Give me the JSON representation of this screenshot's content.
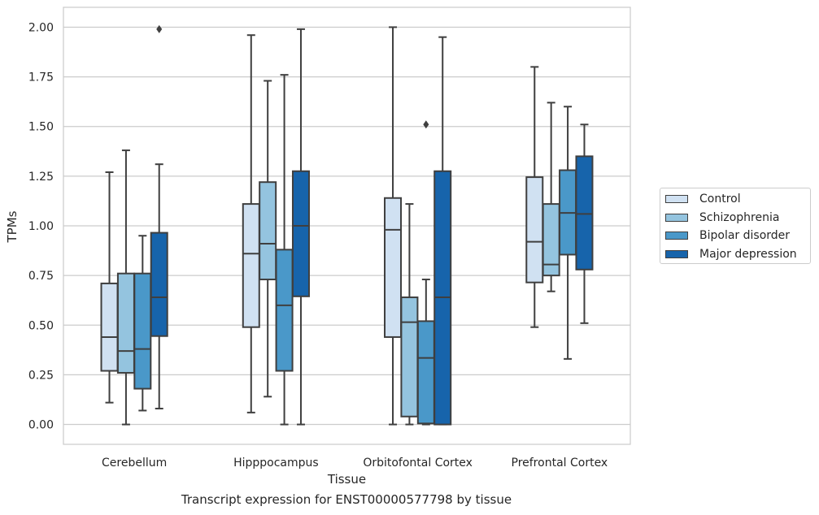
{
  "chart_data": {
    "type": "boxplot",
    "xlabel": "Tissue",
    "ylabel": "TPMs",
    "ylim": [
      -0.1,
      2.1
    ],
    "yticks": [
      "0.00",
      "0.25",
      "0.50",
      "0.75",
      "1.00",
      "1.25",
      "1.50",
      "1.75",
      "2.00"
    ],
    "grid": "horizontal",
    "legend_position": "right",
    "categories": [
      "Cerebellum",
      "Hipppocampus",
      "Orbitofontal Cortex",
      "Prefrontal Cortex"
    ],
    "series": [
      {
        "name": "Control",
        "color": "#d0e1f2",
        "boxes": [
          {
            "whislo": 0.11,
            "q1": 0.27,
            "med": 0.44,
            "q3": 0.71,
            "whishi": 1.27,
            "fliers": []
          },
          {
            "whislo": 0.06,
            "q1": 0.49,
            "med": 0.86,
            "q3": 1.11,
            "whishi": 1.96,
            "fliers": []
          },
          {
            "whislo": 0.0,
            "q1": 0.44,
            "med": 0.98,
            "q3": 1.14,
            "whishi": 2.0,
            "fliers": []
          },
          {
            "whislo": 0.49,
            "q1": 0.715,
            "med": 0.92,
            "q3": 1.245,
            "whishi": 1.8,
            "fliers": []
          }
        ]
      },
      {
        "name": "Schizophrenia",
        "color": "#94c4df",
        "boxes": [
          {
            "whislo": 0.0,
            "q1": 0.26,
            "med": 0.37,
            "q3": 0.76,
            "whishi": 1.38,
            "fliers": []
          },
          {
            "whislo": 0.14,
            "q1": 0.73,
            "med": 0.91,
            "q3": 1.22,
            "whishi": 1.73,
            "fliers": []
          },
          {
            "whislo": 0.0,
            "q1": 0.04,
            "med": 0.515,
            "q3": 0.64,
            "whishi": 1.11,
            "fliers": []
          },
          {
            "whislo": 0.67,
            "q1": 0.75,
            "med": 0.805,
            "q3": 1.11,
            "whishi": 1.62,
            "fliers": []
          }
        ]
      },
      {
        "name": "Bipolar disorder",
        "color": "#4a98c9",
        "boxes": [
          {
            "whislo": 0.07,
            "q1": 0.18,
            "med": 0.38,
            "q3": 0.76,
            "whishi": 0.95,
            "fliers": []
          },
          {
            "whislo": 0.0,
            "q1": 0.27,
            "med": 0.6,
            "q3": 0.88,
            "whishi": 1.76,
            "fliers": []
          },
          {
            "whislo": 0.0,
            "q1": 0.005,
            "med": 0.335,
            "q3": 0.52,
            "whishi": 0.73,
            "fliers": [
              1.51
            ]
          },
          {
            "whislo": 0.33,
            "q1": 0.855,
            "med": 1.065,
            "q3": 1.28,
            "whishi": 1.6,
            "fliers": []
          }
        ]
      },
      {
        "name": "Major depression",
        "color": "#1764ab",
        "boxes": [
          {
            "whislo": 0.08,
            "q1": 0.445,
            "med": 0.64,
            "q3": 0.965,
            "whishi": 1.31,
            "fliers": [
              1.99
            ]
          },
          {
            "whislo": 0.0,
            "q1": 0.645,
            "med": 1.0,
            "q3": 1.275,
            "whishi": 1.99,
            "fliers": []
          },
          {
            "whislo": 0.0,
            "q1": 0.0,
            "med": 0.64,
            "q3": 1.275,
            "whishi": 1.95,
            "fliers": []
          },
          {
            "whislo": 0.51,
            "q1": 0.78,
            "med": 1.06,
            "q3": 1.35,
            "whishi": 1.51,
            "fliers": []
          }
        ]
      }
    ]
  },
  "caption": "Transcript expression for ENST00000577798 by tissue"
}
